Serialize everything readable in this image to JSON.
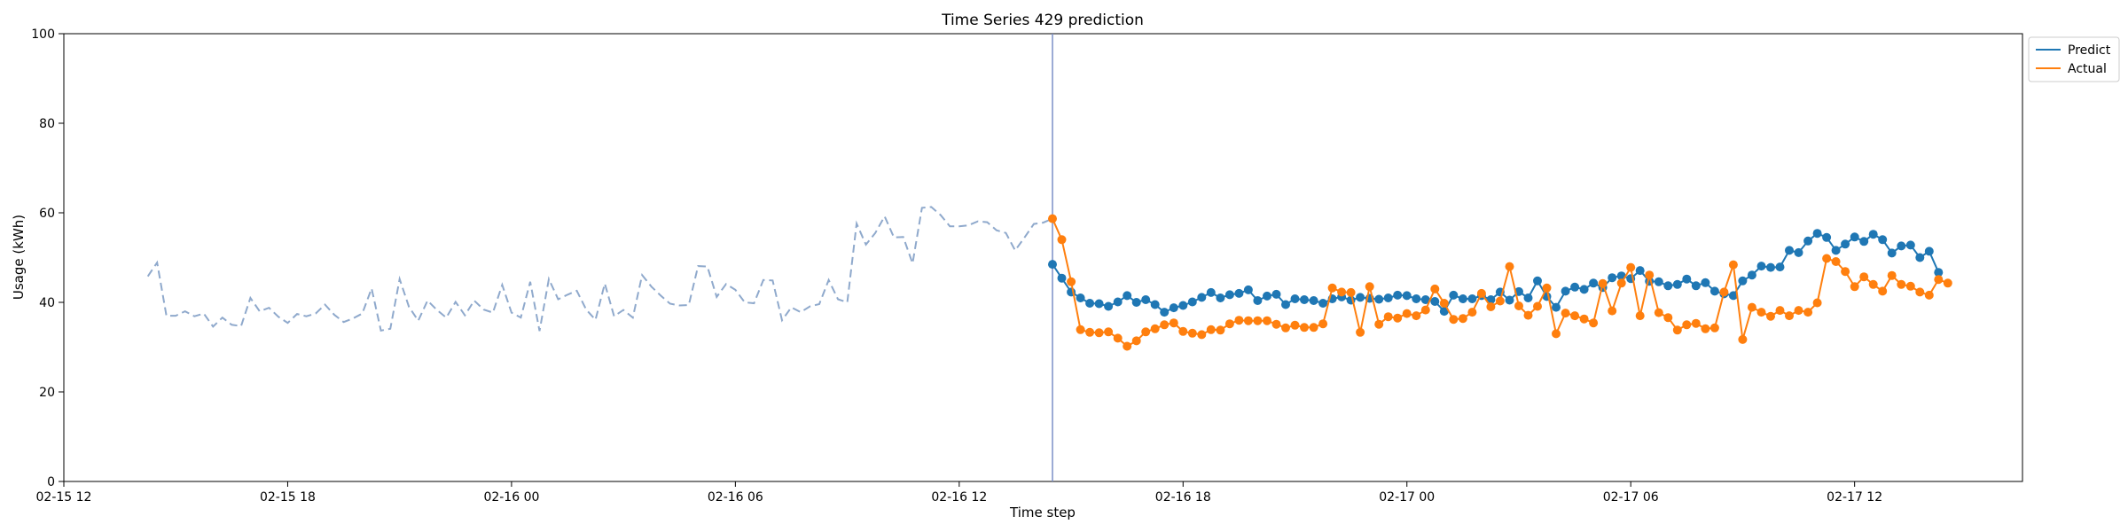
{
  "chart_data": {
    "type": "line",
    "title": "Time Series 429 prediction",
    "xlabel": "Time step",
    "ylabel": "Usage (kWh)",
    "ylim": [
      0,
      100
    ],
    "yticks": [
      0,
      20,
      40,
      60,
      80,
      100
    ],
    "xlim": [
      "02-15 12:00",
      "02-17 16:30"
    ],
    "xticks": [
      "02-15 12",
      "02-15 18",
      "02-16 00",
      "02-16 06",
      "02-16 12",
      "02-16 18",
      "02-17 00",
      "02-17 06",
      "02-17 12"
    ],
    "grid": false,
    "legend_position": "top-right outside",
    "interval_minutes": 15,
    "history": {
      "start": "02-15 14:15",
      "color": "#8fa9cc",
      "style": "dashed",
      "values": [
        45.8,
        48.9,
        37.0,
        37.0,
        38.0,
        36.9,
        37.5,
        34.6,
        36.6,
        35.0,
        34.7,
        41.0,
        38.0,
        38.8,
        36.8,
        35.4,
        37.4,
        36.9,
        37.5,
        39.5,
        37.2,
        35.6,
        36.4,
        37.5,
        43.1,
        33.7,
        34.1,
        45.2,
        39.0,
        35.9,
        40.4,
        38.3,
        36.6,
        40.1,
        37.1,
        40.4,
        38.4,
        37.7,
        43.9,
        37.7,
        36.6,
        44.6,
        33.6,
        45.2,
        40.7,
        41.7,
        42.6,
        38.4,
        36.1,
        44.2,
        36.9,
        38.3,
        36.6,
        46.1,
        43.5,
        41.5,
        39.7,
        39.3,
        39.4,
        48.1,
        48.0,
        41.2,
        44.1,
        42.8,
        40.0,
        39.8,
        45.0,
        44.9,
        36.0,
        38.9,
        37.8,
        39.1,
        39.6,
        45.0,
        40.7,
        40.0,
        57.6,
        52.9,
        55.5,
        59.2,
        54.5,
        54.6,
        48.7,
        61.1,
        61.3,
        59.5,
        57.0,
        57.0,
        57.2,
        58.1,
        57.9,
        56.1,
        55.5,
        51.6,
        54.5,
        57.5,
        57.8,
        58.7
      ]
    },
    "split_time": "02-16 14:30",
    "split_color": "#7b8fc7",
    "forecast_start": "02-16 14:30",
    "series": [
      {
        "name": "Predict",
        "color": "#1f77b4",
        "marker": "circle",
        "values": [
          48.5,
          45.4,
          42.3,
          41.0,
          39.8,
          39.7,
          39.1,
          40.1,
          41.5,
          40.0,
          40.6,
          39.5,
          37.8,
          38.8,
          39.3,
          40.1,
          41.1,
          42.2,
          41.0,
          41.7,
          42.0,
          42.8,
          40.4,
          41.4,
          41.8,
          39.5,
          40.8,
          40.6,
          40.4,
          39.8,
          40.8,
          41.2,
          40.5,
          41.1,
          40.9,
          40.7,
          41.0,
          41.6,
          41.5,
          40.8,
          40.6,
          40.2,
          38.0,
          41.6,
          40.8,
          40.8,
          41.5,
          40.6,
          42.3,
          40.5,
          42.4,
          41.0,
          44.8,
          41.3,
          38.9,
          42.5,
          43.4,
          42.9,
          44.3,
          43.3,
          45.5,
          45.9,
          45.3,
          47.1,
          44.7,
          44.6,
          43.7,
          44.0,
          45.2,
          43.7,
          44.4,
          42.5,
          41.9,
          41.5,
          44.8,
          46.1,
          48.1,
          47.8,
          47.9,
          51.6,
          51.1,
          53.7,
          55.4,
          54.5,
          51.6,
          53.0,
          54.6,
          53.6,
          55.2,
          54.0,
          51.0,
          52.6,
          52.8,
          50.0,
          51.4,
          46.7
        ]
      },
      {
        "name": "Actual",
        "color": "#ff7f0e",
        "marker": "circle",
        "values": [
          58.7,
          54.0,
          44.6,
          33.9,
          33.3,
          33.2,
          33.4,
          32.0,
          30.2,
          31.4,
          33.4,
          34.1,
          35.0,
          35.4,
          33.5,
          33.1,
          32.8,
          33.9,
          33.8,
          35.2,
          36.0,
          35.9,
          35.9,
          35.9,
          35.1,
          34.3,
          34.9,
          34.4,
          34.4,
          35.2,
          43.2,
          42.3,
          42.2,
          33.3,
          43.5,
          35.1,
          36.8,
          36.5,
          37.5,
          37.0,
          38.3,
          43.0,
          39.8,
          36.2,
          36.4,
          37.8,
          42.0,
          39.0,
          40.3,
          48.0,
          39.2,
          37.1,
          39.1,
          43.2,
          33.0,
          37.6,
          37.0,
          36.3,
          35.4,
          44.2,
          38.1,
          44.3,
          47.8,
          37.0,
          46.1,
          37.7,
          36.6,
          33.8,
          35.0,
          35.3,
          34.1,
          34.3,
          42.3,
          48.4,
          31.7,
          38.9,
          37.8,
          36.9,
          38.2,
          37.0,
          38.2,
          37.8,
          39.9,
          49.8,
          49.1,
          46.9,
          43.5,
          45.7,
          44.0,
          42.5,
          46.0,
          44.0,
          43.6,
          42.3,
          41.6,
          45.1,
          44.3
        ]
      }
    ]
  }
}
